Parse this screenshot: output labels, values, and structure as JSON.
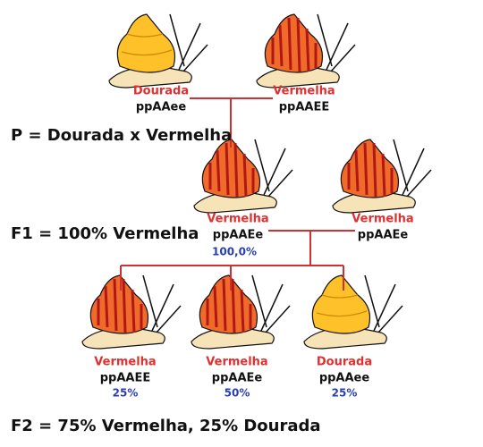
{
  "parents": {
    "label": "P = Dourada x Vermelha",
    "snails": [
      {
        "phenotype": "Dourada",
        "genotype": "ppAAee"
      },
      {
        "phenotype": "Vermelha",
        "genotype": "ppAAEE"
      }
    ]
  },
  "f1": {
    "label": "F1 = 100% Vermelha",
    "snails": [
      {
        "phenotype": "Vermelha",
        "genotype": "ppAAEe",
        "percent": "100,0%"
      },
      {
        "phenotype": "Vermelha",
        "genotype": "ppAAEe"
      }
    ]
  },
  "f2": {
    "label": "F2 = 75% Vermelha, 25% Dourada",
    "snails": [
      {
        "phenotype": "Vermelha",
        "genotype": "ppAAEE",
        "percent": "25%"
      },
      {
        "phenotype": "Vermelha",
        "genotype": "ppAAEe",
        "percent": "50%"
      },
      {
        "phenotype": "Dourada",
        "genotype": "ppAAee",
        "percent": "25%"
      }
    ]
  }
}
